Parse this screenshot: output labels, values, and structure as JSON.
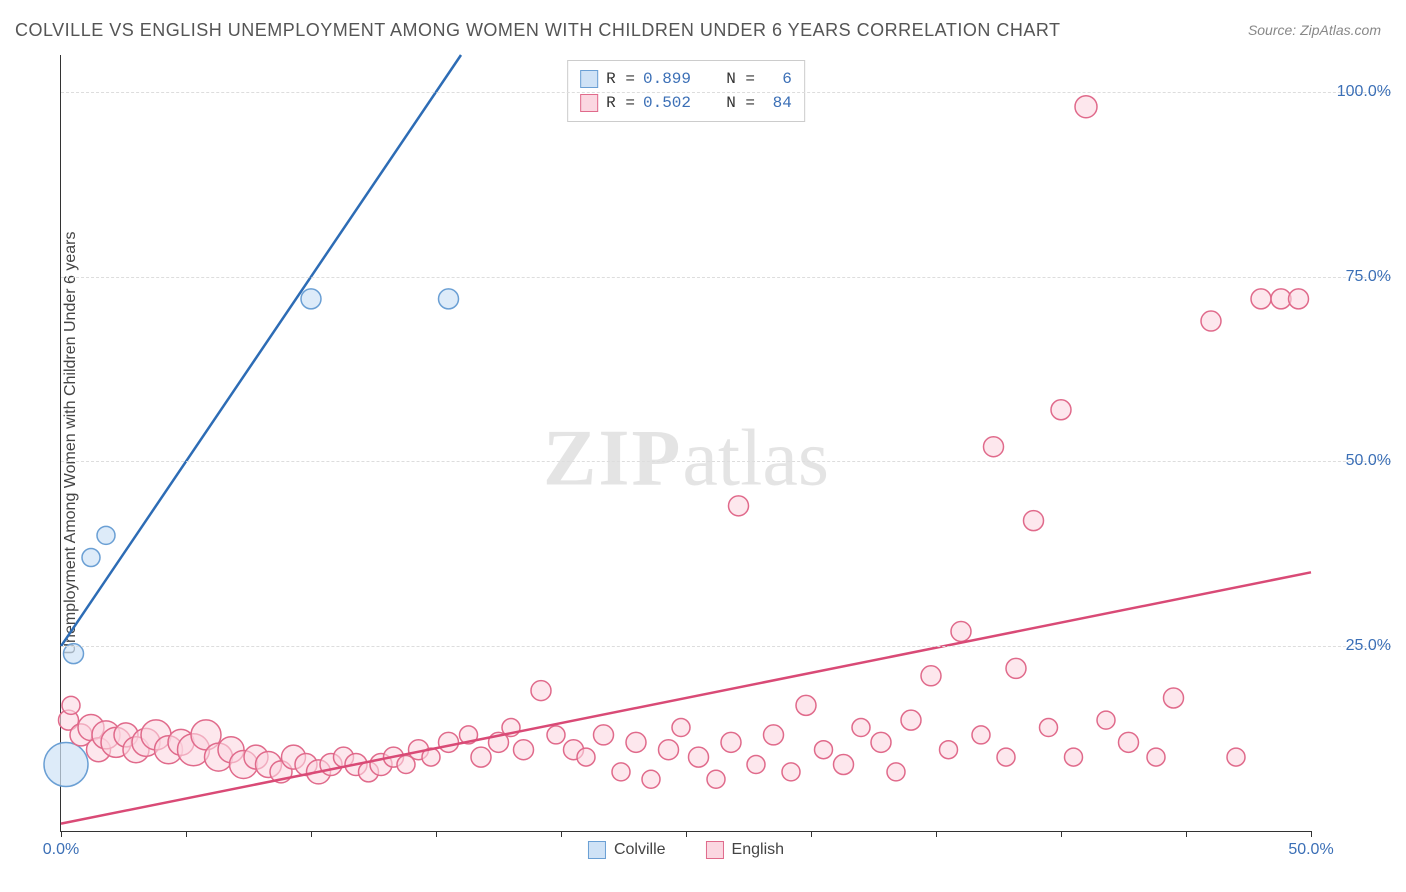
{
  "title": "COLVILLE VS ENGLISH UNEMPLOYMENT AMONG WOMEN WITH CHILDREN UNDER 6 YEARS CORRELATION CHART",
  "source_label": "Source: ZipAtlas.com",
  "y_axis_title": "Unemployment Among Women with Children Under 6 years",
  "watermark": {
    "bold": "ZIP",
    "rest": "atlas"
  },
  "chart": {
    "type": "scatter",
    "background_color": "#ffffff",
    "grid_color": "#dddddd",
    "axis_color": "#333333",
    "tick_label_color": "#3b6fb6",
    "tick_label_fontsize": 16,
    "title_fontsize": 18,
    "xlim": [
      0,
      50
    ],
    "ylim": [
      0,
      105
    ],
    "x_ticks": [
      0,
      5,
      10,
      15,
      20,
      25,
      30,
      35,
      40,
      45,
      50
    ],
    "x_tick_labels": {
      "0": "0.0%",
      "50": "50.0%"
    },
    "y_gridlines": [
      25,
      50,
      75,
      100
    ],
    "y_tick_labels": {
      "25": "25.0%",
      "50": "50.0%",
      "75": "75.0%",
      "100": "100.0%"
    },
    "series": [
      {
        "name": "Colville",
        "fill_color": "#cfe2f6",
        "stroke_color": "#6a9fd4",
        "fill_opacity": 0.7,
        "line_color": "#2d6cb5",
        "line_width": 2.5,
        "trend": {
          "x1": 0,
          "y1": 25,
          "x2": 16,
          "y2": 105
        },
        "stats": {
          "R": "0.899",
          "N": "6"
        },
        "points": [
          {
            "x": 0.2,
            "y": 9,
            "r": 22
          },
          {
            "x": 0.5,
            "y": 24,
            "r": 10
          },
          {
            "x": 1.2,
            "y": 37,
            "r": 9
          },
          {
            "x": 1.8,
            "y": 40,
            "r": 9
          },
          {
            "x": 10.0,
            "y": 72,
            "r": 10
          },
          {
            "x": 15.5,
            "y": 72,
            "r": 10
          }
        ]
      },
      {
        "name": "English",
        "fill_color": "#fbd7e1",
        "stroke_color": "#e06a8b",
        "fill_opacity": 0.6,
        "line_color": "#d94a76",
        "line_width": 2.5,
        "trend": {
          "x1": 0,
          "y1": 1,
          "x2": 50,
          "y2": 35
        },
        "stats": {
          "R": "0.502",
          "N": "84"
        },
        "points": [
          {
            "x": 0.3,
            "y": 15,
            "r": 10
          },
          {
            "x": 0.4,
            "y": 17,
            "r": 9
          },
          {
            "x": 0.8,
            "y": 13,
            "r": 11
          },
          {
            "x": 1.2,
            "y": 14,
            "r": 13
          },
          {
            "x": 1.5,
            "y": 11,
            "r": 12
          },
          {
            "x": 1.8,
            "y": 13,
            "r": 14
          },
          {
            "x": 2.2,
            "y": 12,
            "r": 15
          },
          {
            "x": 2.6,
            "y": 13,
            "r": 12
          },
          {
            "x": 3.0,
            "y": 11,
            "r": 13
          },
          {
            "x": 3.4,
            "y": 12,
            "r": 14
          },
          {
            "x": 3.8,
            "y": 13,
            "r": 15
          },
          {
            "x": 4.3,
            "y": 11,
            "r": 14
          },
          {
            "x": 4.8,
            "y": 12,
            "r": 13
          },
          {
            "x": 5.3,
            "y": 11,
            "r": 16
          },
          {
            "x": 5.8,
            "y": 13,
            "r": 15
          },
          {
            "x": 6.3,
            "y": 10,
            "r": 14
          },
          {
            "x": 6.8,
            "y": 11,
            "r": 13
          },
          {
            "x": 7.3,
            "y": 9,
            "r": 14
          },
          {
            "x": 7.8,
            "y": 10,
            "r": 12
          },
          {
            "x": 8.3,
            "y": 9,
            "r": 13
          },
          {
            "x": 8.8,
            "y": 8,
            "r": 11
          },
          {
            "x": 9.3,
            "y": 10,
            "r": 12
          },
          {
            "x": 9.8,
            "y": 9,
            "r": 11
          },
          {
            "x": 10.3,
            "y": 8,
            "r": 12
          },
          {
            "x": 10.8,
            "y": 9,
            "r": 11
          },
          {
            "x": 11.3,
            "y": 10,
            "r": 10
          },
          {
            "x": 11.8,
            "y": 9,
            "r": 11
          },
          {
            "x": 12.3,
            "y": 8,
            "r": 10
          },
          {
            "x": 12.8,
            "y": 9,
            "r": 11
          },
          {
            "x": 13.3,
            "y": 10,
            "r": 10
          },
          {
            "x": 13.8,
            "y": 9,
            "r": 9
          },
          {
            "x": 14.3,
            "y": 11,
            "r": 10
          },
          {
            "x": 14.8,
            "y": 10,
            "r": 9
          },
          {
            "x": 15.5,
            "y": 12,
            "r": 10
          },
          {
            "x": 16.3,
            "y": 13,
            "r": 9
          },
          {
            "x": 16.8,
            "y": 10,
            "r": 10
          },
          {
            "x": 17.5,
            "y": 12,
            "r": 10
          },
          {
            "x": 18.0,
            "y": 14,
            "r": 9
          },
          {
            "x": 18.5,
            "y": 11,
            "r": 10
          },
          {
            "x": 19.2,
            "y": 19,
            "r": 10
          },
          {
            "x": 19.8,
            "y": 13,
            "r": 9
          },
          {
            "x": 20.5,
            "y": 11,
            "r": 10
          },
          {
            "x": 21.0,
            "y": 10,
            "r": 9
          },
          {
            "x": 21.7,
            "y": 13,
            "r": 10
          },
          {
            "x": 22.4,
            "y": 8,
            "r": 9
          },
          {
            "x": 23.0,
            "y": 12,
            "r": 10
          },
          {
            "x": 23.6,
            "y": 7,
            "r": 9
          },
          {
            "x": 24.3,
            "y": 11,
            "r": 10
          },
          {
            "x": 24.8,
            "y": 14,
            "r": 9
          },
          {
            "x": 25.5,
            "y": 10,
            "r": 10
          },
          {
            "x": 26.2,
            "y": 7,
            "r": 9
          },
          {
            "x": 26.8,
            "y": 12,
            "r": 10
          },
          {
            "x": 27.1,
            "y": 44,
            "r": 10
          },
          {
            "x": 27.8,
            "y": 9,
            "r": 9
          },
          {
            "x": 28.5,
            "y": 13,
            "r": 10
          },
          {
            "x": 29.2,
            "y": 8,
            "r": 9
          },
          {
            "x": 29.8,
            "y": 17,
            "r": 10
          },
          {
            "x": 30.5,
            "y": 11,
            "r": 9
          },
          {
            "x": 31.3,
            "y": 9,
            "r": 10
          },
          {
            "x": 32.0,
            "y": 14,
            "r": 9
          },
          {
            "x": 32.8,
            "y": 12,
            "r": 10
          },
          {
            "x": 33.4,
            "y": 8,
            "r": 9
          },
          {
            "x": 34.0,
            "y": 15,
            "r": 10
          },
          {
            "x": 34.8,
            "y": 21,
            "r": 10
          },
          {
            "x": 35.5,
            "y": 11,
            "r": 9
          },
          {
            "x": 36.0,
            "y": 27,
            "r": 10
          },
          {
            "x": 36.8,
            "y": 13,
            "r": 9
          },
          {
            "x": 37.3,
            "y": 52,
            "r": 10
          },
          {
            "x": 37.8,
            "y": 10,
            "r": 9
          },
          {
            "x": 38.2,
            "y": 22,
            "r": 10
          },
          {
            "x": 38.9,
            "y": 42,
            "r": 10
          },
          {
            "x": 39.5,
            "y": 14,
            "r": 9
          },
          {
            "x": 40.0,
            "y": 57,
            "r": 10
          },
          {
            "x": 40.5,
            "y": 10,
            "r": 9
          },
          {
            "x": 41.0,
            "y": 98,
            "r": 11
          },
          {
            "x": 41.8,
            "y": 15,
            "r": 9
          },
          {
            "x": 42.7,
            "y": 12,
            "r": 10
          },
          {
            "x": 43.8,
            "y": 10,
            "r": 9
          },
          {
            "x": 44.5,
            "y": 18,
            "r": 10
          },
          {
            "x": 46.0,
            "y": 69,
            "r": 10
          },
          {
            "x": 48.0,
            "y": 72,
            "r": 10
          },
          {
            "x": 48.8,
            "y": 72,
            "r": 10
          },
          {
            "x": 49.5,
            "y": 72,
            "r": 10
          },
          {
            "x": 47.0,
            "y": 10,
            "r": 9
          }
        ]
      }
    ],
    "legend_bottom": [
      {
        "label": "Colville",
        "fill": "#cfe2f6",
        "stroke": "#6a9fd4"
      },
      {
        "label": "English",
        "fill": "#fbd7e1",
        "stroke": "#e06a8b"
      }
    ]
  }
}
